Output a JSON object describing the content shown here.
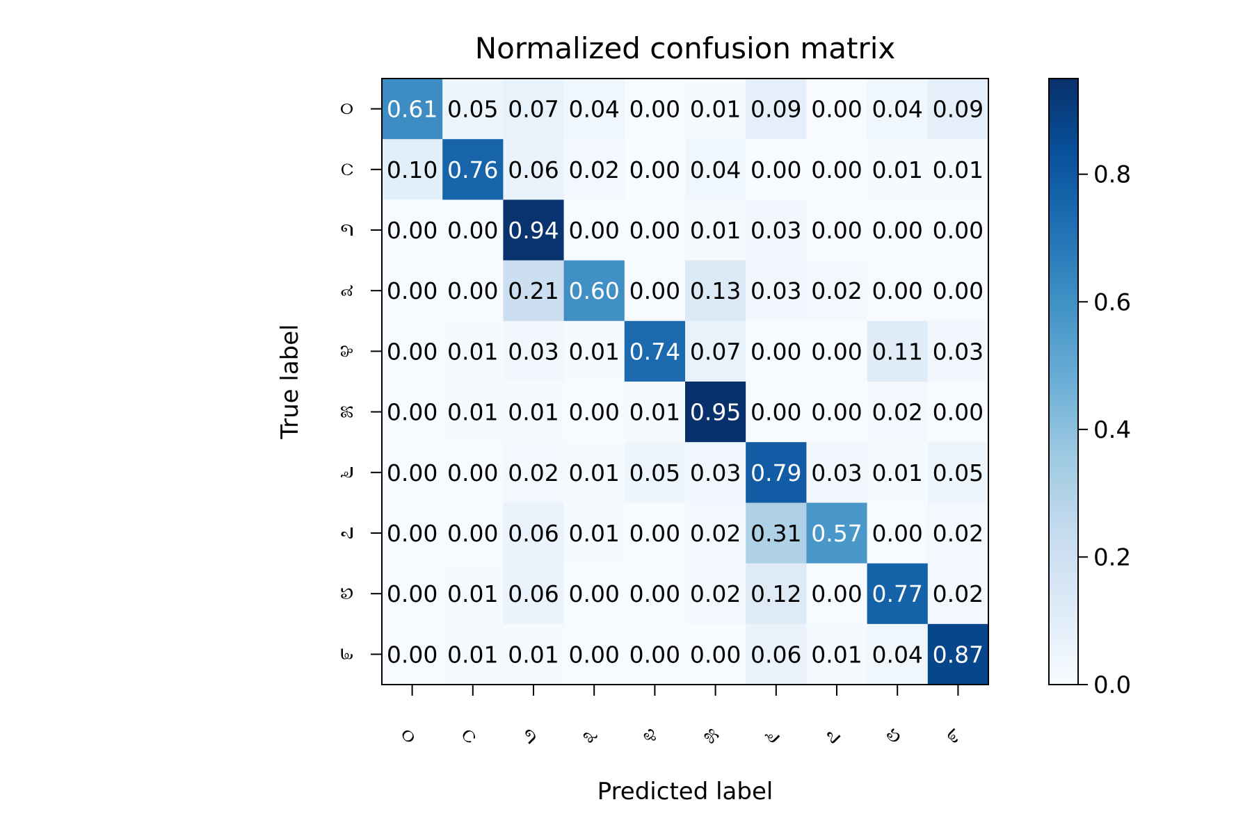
{
  "chart_data": {
    "type": "heatmap",
    "title": "Normalized confusion matrix",
    "xlabel": "Predicted label",
    "ylabel": "True label",
    "x_categories": [
      "೦",
      "೧",
      "೨",
      "೩",
      "೪",
      "೫",
      "೬",
      "೭",
      "೮",
      "೯"
    ],
    "y_categories": [
      "೦",
      "೧",
      "೨",
      "೩",
      "೪",
      "೫",
      "೬",
      "೭",
      "೮",
      "೯"
    ],
    "values": [
      [
        0.61,
        0.05,
        0.07,
        0.04,
        0.0,
        0.01,
        0.09,
        0.0,
        0.04,
        0.09
      ],
      [
        0.1,
        0.76,
        0.06,
        0.02,
        0.0,
        0.04,
        0.0,
        0.0,
        0.01,
        0.01
      ],
      [
        0.0,
        0.0,
        0.94,
        0.0,
        0.0,
        0.01,
        0.03,
        0.0,
        0.0,
        0.0
      ],
      [
        0.0,
        0.0,
        0.21,
        0.6,
        0.0,
        0.13,
        0.03,
        0.02,
        0.0,
        0.0
      ],
      [
        0.0,
        0.01,
        0.03,
        0.01,
        0.74,
        0.07,
        0.0,
        0.0,
        0.11,
        0.03
      ],
      [
        0.0,
        0.01,
        0.01,
        0.0,
        0.01,
        0.95,
        0.0,
        0.0,
        0.02,
        0.0
      ],
      [
        0.0,
        0.0,
        0.02,
        0.01,
        0.05,
        0.03,
        0.79,
        0.03,
        0.01,
        0.05
      ],
      [
        0.0,
        0.0,
        0.06,
        0.01,
        0.0,
        0.02,
        0.31,
        0.57,
        0.0,
        0.02
      ],
      [
        0.0,
        0.01,
        0.06,
        0.0,
        0.0,
        0.02,
        0.12,
        0.0,
        0.77,
        0.02
      ],
      [
        0.0,
        0.01,
        0.01,
        0.0,
        0.0,
        0.0,
        0.06,
        0.01,
        0.04,
        0.87
      ]
    ],
    "colormap": "Blues",
    "color_range": [
      0,
      0.95
    ],
    "colorbar_ticks": [
      "0.0",
      "0.2",
      "0.4",
      "0.6",
      "0.8"
    ],
    "colorbar_tick_values": [
      0,
      0.2,
      0.4,
      0.6,
      0.8
    ],
    "text_threshold": 0.475,
    "light_text_color": "#ffffff",
    "dark_text_color": "#000000",
    "grid": false,
    "legend": "colorbar-right"
  }
}
